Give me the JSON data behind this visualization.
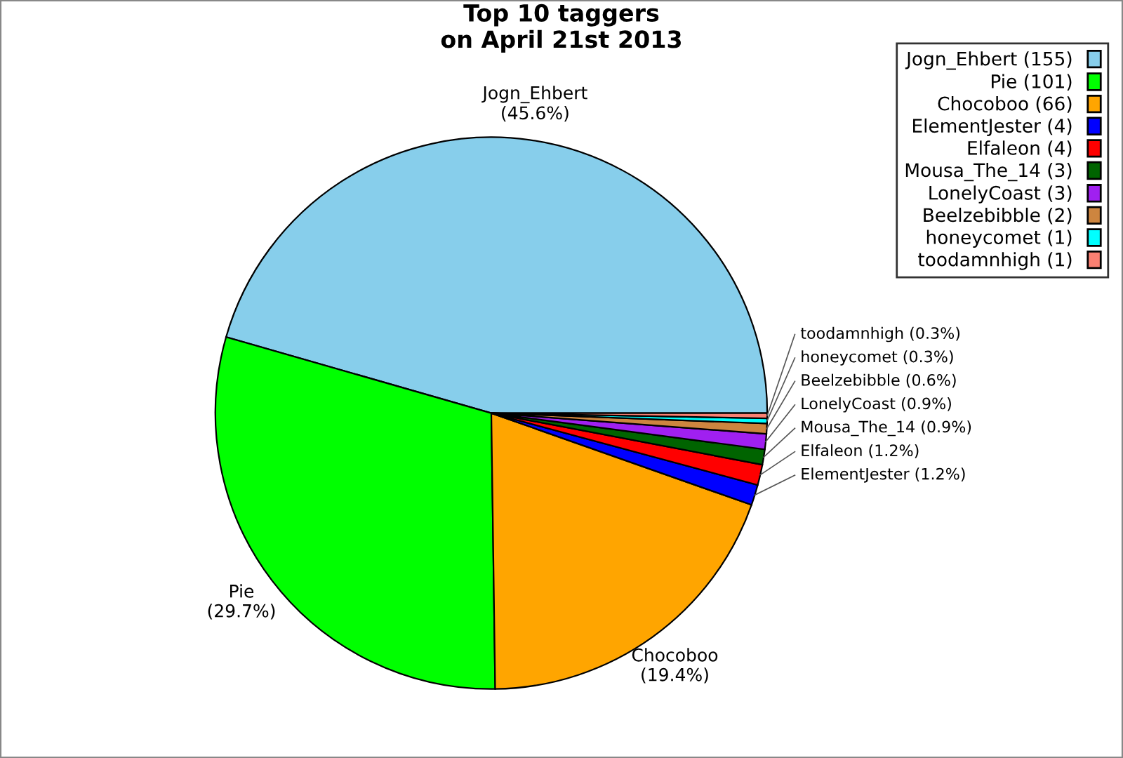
{
  "chart_data": {
    "type": "pie",
    "title": "Top 10 taggers\non April 21st 2013",
    "categories": [
      "Jogn_Ehbert (155)",
      "Pie (101)",
      "Chocoboo (66)",
      "ElementJester (4)",
      "Elfaleon (4)",
      "Mousa_The_14 (3)",
      "LonelyCoast (3)",
      "Beelzebibble (2)",
      "honeycomet (1)",
      "toodamnhigh (1)"
    ],
    "values": [
      45.6,
      29.7,
      19.4,
      1.2,
      1.2,
      0.9,
      0.9,
      0.6,
      0.3,
      0.3
    ],
    "value_labels": [
      "Jogn_Ehbert\n(45.6%)",
      "Pie\n(29.7%)",
      "Chocoboo\n(19.4%)",
      "ElementJester\n(1.2%)",
      "Elfaleon\n(1.2%)",
      "Mousa_The_14\n(0.9%)",
      "LonelyCoast\n(0.9%)",
      "Beelzebibble\n(0.6%)",
      "honeycomet\n(0.3%)",
      "toodamnhigh\n(0.3%)"
    ],
    "colors": [
      "#87ceeb",
      "#00ff00",
      "#ffa500",
      "#0000ff",
      "#ff0000",
      "#006400",
      "#a020f0",
      "#cd853f",
      "#00ffff",
      "#fa8072"
    ],
    "legend": "top right"
  }
}
